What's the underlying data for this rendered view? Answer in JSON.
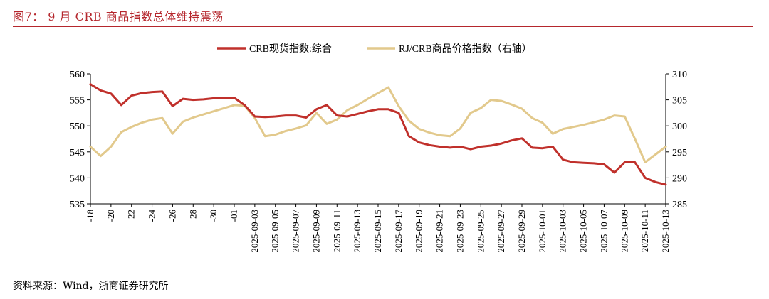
{
  "figure": {
    "title": "图7： 9 月 CRB 商品指数总体维持震荡",
    "source": "资料来源：Wind，浙商证券研究所"
  },
  "chart_data": {
    "type": "line",
    "legend_position": "top",
    "grid": false,
    "left_axis": {
      "min": 535,
      "max": 560,
      "ticks": [
        "560",
        "555",
        "550",
        "545",
        "540",
        "535"
      ]
    },
    "right_axis": {
      "min": 285,
      "max": 310,
      "ticks": [
        "310",
        "305",
        "300",
        "295",
        "290",
        "285"
      ]
    },
    "x_tick_labels": [
      "-18",
      "-20",
      "-22",
      "-24",
      "-26",
      "-28",
      "-30",
      "-01",
      "2025-09-03",
      "2025-09-05",
      "2025-09-07",
      "2025-09-09",
      "2025-09-11",
      "2025-09-13",
      "2025-09-15",
      "2025-09-17",
      "2025-09-19",
      "2025-09-21",
      "2025-09-23",
      "2025-09-25",
      "2025-09-27",
      "2025-09-29",
      "2025-10-01",
      "2025-10-03",
      "2025-10-05",
      "2025-10-07",
      "2025-10-09",
      "2025-10-11",
      "2025-10-13"
    ],
    "x": [
      "08-18",
      "08-19",
      "08-20",
      "08-21",
      "08-22",
      "08-23",
      "08-24",
      "08-25",
      "08-26",
      "08-27",
      "08-28",
      "08-29",
      "08-30",
      "08-31",
      "09-01",
      "09-02",
      "09-03",
      "09-04",
      "09-05",
      "09-06",
      "09-07",
      "09-08",
      "09-09",
      "09-10",
      "09-11",
      "09-12",
      "09-13",
      "09-14",
      "09-15",
      "09-16",
      "09-17",
      "09-18",
      "09-19",
      "09-20",
      "09-21",
      "09-22",
      "09-23",
      "09-24",
      "09-25",
      "09-26",
      "09-27",
      "09-28",
      "09-29",
      "09-30",
      "10-01",
      "10-02",
      "10-03",
      "10-04",
      "10-05",
      "10-06",
      "10-07",
      "10-08",
      "10-09",
      "10-10",
      "10-11",
      "10-12",
      "10-13"
    ],
    "series": [
      {
        "name": "CRB现货指数:综合",
        "axis": "left",
        "color": "#c0302b",
        "values": [
          558.0,
          556.8,
          556.2,
          554.0,
          555.8,
          556.3,
          556.5,
          556.6,
          553.8,
          555.2,
          555.0,
          555.1,
          555.3,
          555.4,
          555.4,
          554.0,
          551.8,
          551.7,
          551.8,
          552.0,
          552.0,
          551.6,
          553.2,
          554.0,
          552.0,
          551.8,
          552.3,
          552.8,
          553.2,
          553.2,
          552.5,
          548.0,
          546.8,
          546.3,
          546.0,
          545.8,
          546.0,
          545.5,
          546.0,
          546.2,
          546.6,
          547.2,
          547.6,
          545.8,
          545.7,
          546.0,
          543.5,
          543.0,
          542.9,
          542.8,
          542.6,
          541.0,
          543.0,
          543.0,
          540.0,
          539.2,
          538.7
        ]
      },
      {
        "name": "RJ/CRB商品价格指数（右轴）",
        "axis": "right",
        "color": "#e2c98c",
        "values": [
          296.0,
          294.2,
          296.0,
          298.8,
          299.8,
          300.6,
          301.2,
          301.5,
          298.5,
          300.8,
          301.6,
          302.2,
          302.8,
          303.4,
          304.0,
          303.9,
          301.5,
          298.0,
          298.3,
          299.0,
          299.5,
          300.1,
          302.5,
          300.4,
          301.2,
          303.0,
          304.0,
          305.2,
          306.3,
          307.4,
          303.8,
          301.0,
          299.4,
          298.7,
          298.2,
          298.0,
          299.5,
          302.5,
          303.4,
          305.0,
          304.8,
          304.1,
          303.3,
          301.5,
          300.6,
          298.5,
          299.4,
          299.8,
          300.2,
          300.7,
          301.2,
          302.0,
          301.8,
          297.5,
          293.0,
          294.5,
          296.0
        ]
      }
    ]
  }
}
